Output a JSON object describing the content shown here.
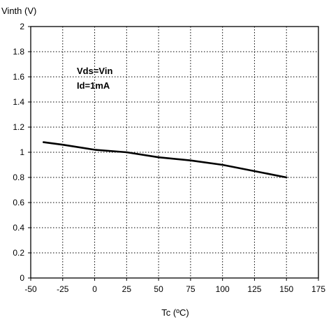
{
  "chart_data": {
    "type": "line",
    "title": "",
    "xlabel": "Tc (ºC)",
    "ylabel": "Vinth (V)",
    "xlim": [
      -50,
      175
    ],
    "ylim": [
      0,
      2
    ],
    "x_ticks": [
      -50,
      -25,
      0,
      25,
      50,
      75,
      100,
      125,
      150,
      175
    ],
    "y_ticks": [
      0,
      0.2,
      0.4,
      0.6,
      0.8,
      1,
      1.2,
      1.4,
      1.6,
      1.8,
      2
    ],
    "x_tick_labels": [
      "-50",
      "-25",
      "0",
      "25",
      "50",
      "75",
      "100",
      "125",
      "150",
      "175"
    ],
    "y_tick_labels": [
      "0",
      "0.2",
      "0.4",
      "0.6",
      "0.8",
      "1",
      "1.2",
      "1.4",
      "1.6",
      "1.8",
      "2"
    ],
    "grid": "dotted",
    "annotations": [
      "Vds=Vin",
      "Id=1mA"
    ],
    "series": [
      {
        "x": [
          -40,
          -25,
          0,
          25,
          50,
          75,
          100,
          125,
          150
        ],
        "y": [
          1.08,
          1.06,
          1.02,
          1.0,
          0.96,
          0.935,
          0.9,
          0.85,
          0.8
        ],
        "color": "#000000"
      }
    ]
  }
}
